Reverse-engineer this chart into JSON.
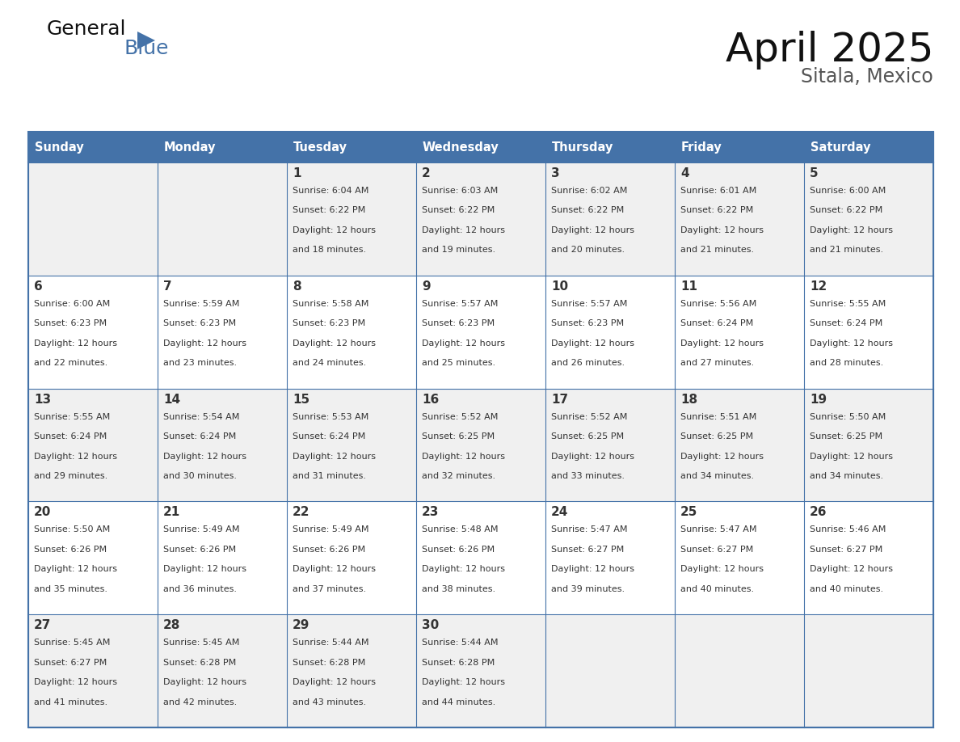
{
  "title": "April 2025",
  "subtitle": "Sitala, Mexico",
  "header_color": "#4472a8",
  "header_text_color": "#ffffff",
  "cell_bg_even": "#f0f0f0",
  "cell_bg_odd": "#ffffff",
  "border_color": "#4472a8",
  "text_color": "#333333",
  "days_of_week": [
    "Sunday",
    "Monday",
    "Tuesday",
    "Wednesday",
    "Thursday",
    "Friday",
    "Saturday"
  ],
  "calendar_data": [
    [
      {
        "day": "",
        "sunrise": "",
        "sunset": "",
        "daylight_a": "",
        "daylight_b": ""
      },
      {
        "day": "",
        "sunrise": "",
        "sunset": "",
        "daylight_a": "",
        "daylight_b": ""
      },
      {
        "day": "1",
        "sunrise": "Sunrise: 6:04 AM",
        "sunset": "Sunset: 6:22 PM",
        "daylight_a": "Daylight: 12 hours",
        "daylight_b": "and 18 minutes."
      },
      {
        "day": "2",
        "sunrise": "Sunrise: 6:03 AM",
        "sunset": "Sunset: 6:22 PM",
        "daylight_a": "Daylight: 12 hours",
        "daylight_b": "and 19 minutes."
      },
      {
        "day": "3",
        "sunrise": "Sunrise: 6:02 AM",
        "sunset": "Sunset: 6:22 PM",
        "daylight_a": "Daylight: 12 hours",
        "daylight_b": "and 20 minutes."
      },
      {
        "day": "4",
        "sunrise": "Sunrise: 6:01 AM",
        "sunset": "Sunset: 6:22 PM",
        "daylight_a": "Daylight: 12 hours",
        "daylight_b": "and 21 minutes."
      },
      {
        "day": "5",
        "sunrise": "Sunrise: 6:00 AM",
        "sunset": "Sunset: 6:22 PM",
        "daylight_a": "Daylight: 12 hours",
        "daylight_b": "and 21 minutes."
      }
    ],
    [
      {
        "day": "6",
        "sunrise": "Sunrise: 6:00 AM",
        "sunset": "Sunset: 6:23 PM",
        "daylight_a": "Daylight: 12 hours",
        "daylight_b": "and 22 minutes."
      },
      {
        "day": "7",
        "sunrise": "Sunrise: 5:59 AM",
        "sunset": "Sunset: 6:23 PM",
        "daylight_a": "Daylight: 12 hours",
        "daylight_b": "and 23 minutes."
      },
      {
        "day": "8",
        "sunrise": "Sunrise: 5:58 AM",
        "sunset": "Sunset: 6:23 PM",
        "daylight_a": "Daylight: 12 hours",
        "daylight_b": "and 24 minutes."
      },
      {
        "day": "9",
        "sunrise": "Sunrise: 5:57 AM",
        "sunset": "Sunset: 6:23 PM",
        "daylight_a": "Daylight: 12 hours",
        "daylight_b": "and 25 minutes."
      },
      {
        "day": "10",
        "sunrise": "Sunrise: 5:57 AM",
        "sunset": "Sunset: 6:23 PM",
        "daylight_a": "Daylight: 12 hours",
        "daylight_b": "and 26 minutes."
      },
      {
        "day": "11",
        "sunrise": "Sunrise: 5:56 AM",
        "sunset": "Sunset: 6:24 PM",
        "daylight_a": "Daylight: 12 hours",
        "daylight_b": "and 27 minutes."
      },
      {
        "day": "12",
        "sunrise": "Sunrise: 5:55 AM",
        "sunset": "Sunset: 6:24 PM",
        "daylight_a": "Daylight: 12 hours",
        "daylight_b": "and 28 minutes."
      }
    ],
    [
      {
        "day": "13",
        "sunrise": "Sunrise: 5:55 AM",
        "sunset": "Sunset: 6:24 PM",
        "daylight_a": "Daylight: 12 hours",
        "daylight_b": "and 29 minutes."
      },
      {
        "day": "14",
        "sunrise": "Sunrise: 5:54 AM",
        "sunset": "Sunset: 6:24 PM",
        "daylight_a": "Daylight: 12 hours",
        "daylight_b": "and 30 minutes."
      },
      {
        "day": "15",
        "sunrise": "Sunrise: 5:53 AM",
        "sunset": "Sunset: 6:24 PM",
        "daylight_a": "Daylight: 12 hours",
        "daylight_b": "and 31 minutes."
      },
      {
        "day": "16",
        "sunrise": "Sunrise: 5:52 AM",
        "sunset": "Sunset: 6:25 PM",
        "daylight_a": "Daylight: 12 hours",
        "daylight_b": "and 32 minutes."
      },
      {
        "day": "17",
        "sunrise": "Sunrise: 5:52 AM",
        "sunset": "Sunset: 6:25 PM",
        "daylight_a": "Daylight: 12 hours",
        "daylight_b": "and 33 minutes."
      },
      {
        "day": "18",
        "sunrise": "Sunrise: 5:51 AM",
        "sunset": "Sunset: 6:25 PM",
        "daylight_a": "Daylight: 12 hours",
        "daylight_b": "and 34 minutes."
      },
      {
        "day": "19",
        "sunrise": "Sunrise: 5:50 AM",
        "sunset": "Sunset: 6:25 PM",
        "daylight_a": "Daylight: 12 hours",
        "daylight_b": "and 34 minutes."
      }
    ],
    [
      {
        "day": "20",
        "sunrise": "Sunrise: 5:50 AM",
        "sunset": "Sunset: 6:26 PM",
        "daylight_a": "Daylight: 12 hours",
        "daylight_b": "and 35 minutes."
      },
      {
        "day": "21",
        "sunrise": "Sunrise: 5:49 AM",
        "sunset": "Sunset: 6:26 PM",
        "daylight_a": "Daylight: 12 hours",
        "daylight_b": "and 36 minutes."
      },
      {
        "day": "22",
        "sunrise": "Sunrise: 5:49 AM",
        "sunset": "Sunset: 6:26 PM",
        "daylight_a": "Daylight: 12 hours",
        "daylight_b": "and 37 minutes."
      },
      {
        "day": "23",
        "sunrise": "Sunrise: 5:48 AM",
        "sunset": "Sunset: 6:26 PM",
        "daylight_a": "Daylight: 12 hours",
        "daylight_b": "and 38 minutes."
      },
      {
        "day": "24",
        "sunrise": "Sunrise: 5:47 AM",
        "sunset": "Sunset: 6:27 PM",
        "daylight_a": "Daylight: 12 hours",
        "daylight_b": "and 39 minutes."
      },
      {
        "day": "25",
        "sunrise": "Sunrise: 5:47 AM",
        "sunset": "Sunset: 6:27 PM",
        "daylight_a": "Daylight: 12 hours",
        "daylight_b": "and 40 minutes."
      },
      {
        "day": "26",
        "sunrise": "Sunrise: 5:46 AM",
        "sunset": "Sunset: 6:27 PM",
        "daylight_a": "Daylight: 12 hours",
        "daylight_b": "and 40 minutes."
      }
    ],
    [
      {
        "day": "27",
        "sunrise": "Sunrise: 5:45 AM",
        "sunset": "Sunset: 6:27 PM",
        "daylight_a": "Daylight: 12 hours",
        "daylight_b": "and 41 minutes."
      },
      {
        "day": "28",
        "sunrise": "Sunrise: 5:45 AM",
        "sunset": "Sunset: 6:28 PM",
        "daylight_a": "Daylight: 12 hours",
        "daylight_b": "and 42 minutes."
      },
      {
        "day": "29",
        "sunrise": "Sunrise: 5:44 AM",
        "sunset": "Sunset: 6:28 PM",
        "daylight_a": "Daylight: 12 hours",
        "daylight_b": "and 43 minutes."
      },
      {
        "day": "30",
        "sunrise": "Sunrise: 5:44 AM",
        "sunset": "Sunset: 6:28 PM",
        "daylight_a": "Daylight: 12 hours",
        "daylight_b": "and 44 minutes."
      },
      {
        "day": "",
        "sunrise": "",
        "sunset": "",
        "daylight_a": "",
        "daylight_b": ""
      },
      {
        "day": "",
        "sunrise": "",
        "sunset": "",
        "daylight_a": "",
        "daylight_b": ""
      },
      {
        "day": "",
        "sunrise": "",
        "sunset": "",
        "daylight_a": "",
        "daylight_b": ""
      }
    ]
  ]
}
